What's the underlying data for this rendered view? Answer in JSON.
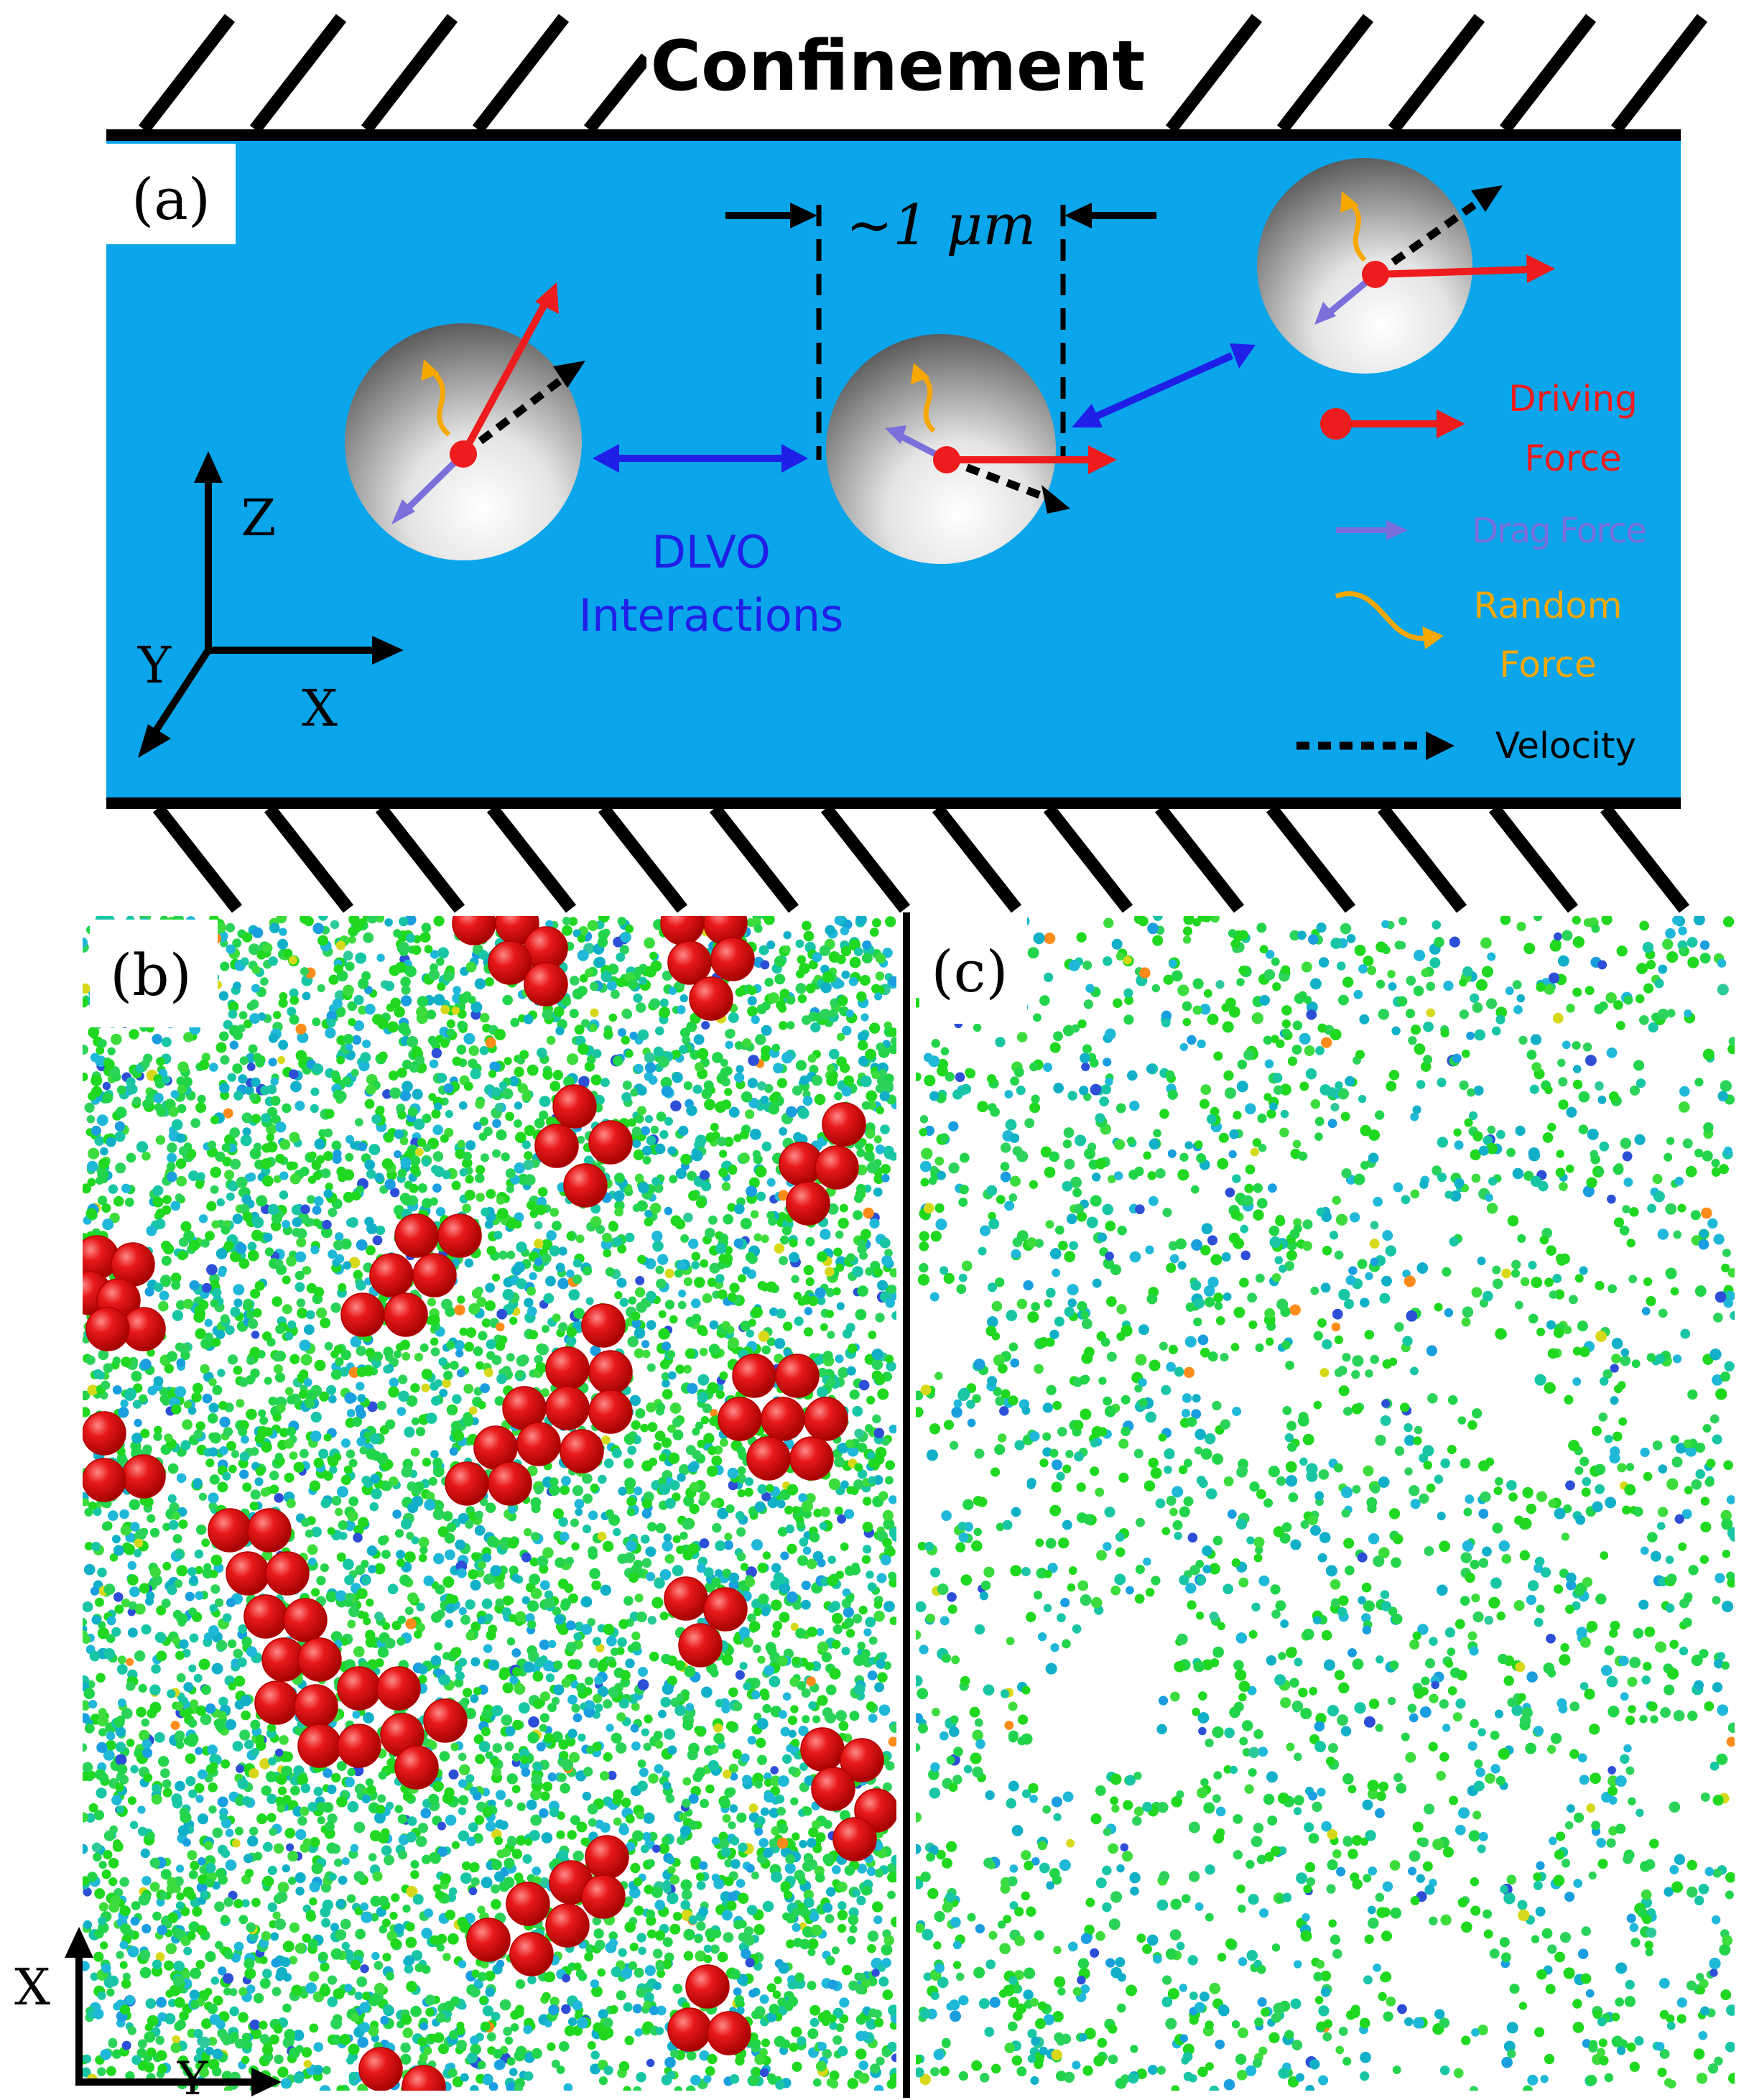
{
  "panel_a": {
    "label": "(a)",
    "title": "Confinement",
    "scale_label": "~1 μm",
    "dlvo_label_line1": "DLVO",
    "dlvo_label_line2": "Interactions",
    "axes": {
      "z": "Z",
      "y": "Y",
      "x": "X"
    },
    "legend": {
      "driving_force_line1": "Driving",
      "driving_force_line2": "Force",
      "drag_force": "Drag Force",
      "random_force_line1": "Random",
      "random_force_line2": "Force",
      "velocity": "Velocity"
    }
  },
  "panel_b": {
    "label": "(b)",
    "axes": {
      "x": "X",
      "y": "Y"
    }
  },
  "panel_c": {
    "label": "(c)"
  },
  "colors": {
    "fluid": "#0aa5ea",
    "driving_force": "#ee1c1c",
    "drag_force": "#7b6fdc",
    "random_force": "#f7a800",
    "dlvo": "#1f1fe8",
    "velocity": "#000000",
    "large_particle": "#e30e0e"
  }
}
